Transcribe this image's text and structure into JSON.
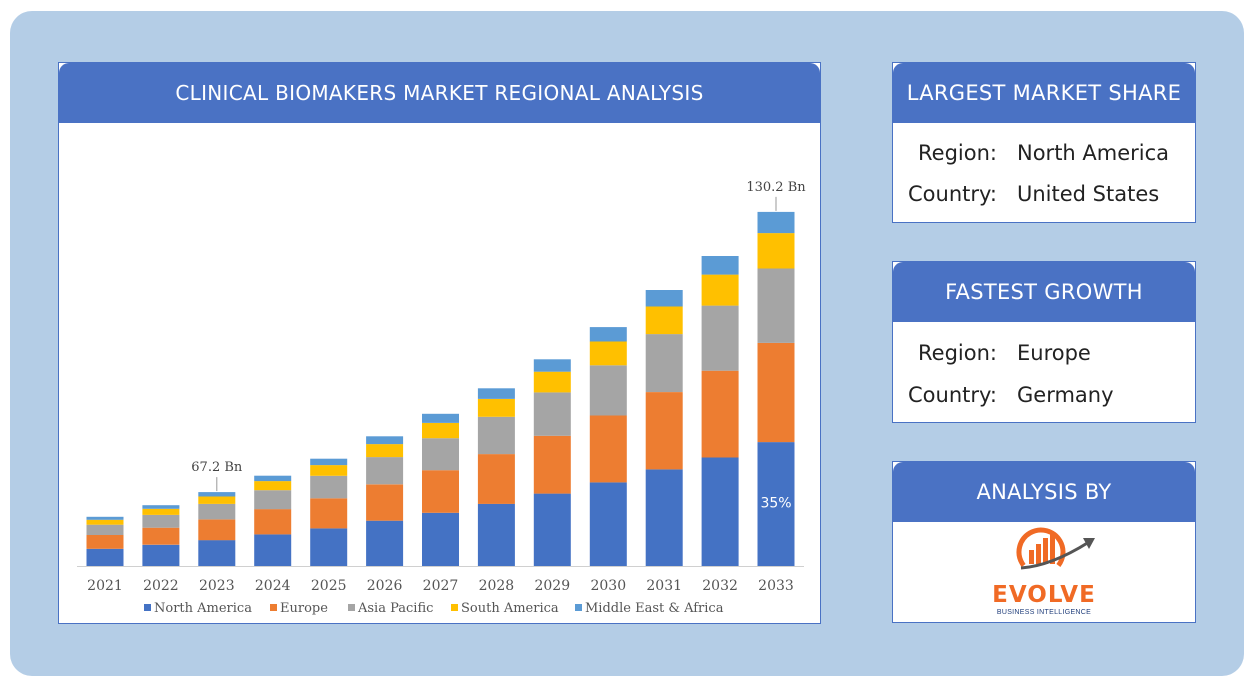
{
  "chart_card": {
    "title": "CLINICAL BIOMAKERS MARKET REGIONAL ANALYSIS"
  },
  "chart_data": {
    "type": "bar",
    "stacked": true,
    "title": "CLINICAL BIOMAKERS MARKET REGIONAL ANALYSIS",
    "xlabel": "",
    "ylabel": "",
    "categories": [
      "2021",
      "2022",
      "2023",
      "2024",
      "2025",
      "2026",
      "2027",
      "2028",
      "2029",
      "2030",
      "2031",
      "2032",
      "2033"
    ],
    "series": [
      {
        "name": "North America",
        "color": "#4472c4",
        "values": [
          17.5,
          21.6,
          26.3,
          32.1,
          38.2,
          46.1,
          54.1,
          63.2,
          73.6,
          85.0,
          98.2,
          110.3,
          126.0
        ]
      },
      {
        "name": "Europe",
        "color": "#ed7d31",
        "values": [
          14.0,
          17.3,
          21.0,
          25.7,
          30.6,
          36.9,
          43.3,
          50.6,
          58.8,
          68.0,
          78.6,
          88.2,
          100.8
        ]
      },
      {
        "name": "Asia Pacific",
        "color": "#a5a5a5",
        "values": [
          10.5,
          13.0,
          15.8,
          19.3,
          22.9,
          27.7,
          32.5,
          37.9,
          44.1,
          51.0,
          58.9,
          66.2,
          75.6
        ]
      },
      {
        "name": "South America",
        "color": "#ffc000",
        "values": [
          5.0,
          6.2,
          7.5,
          9.2,
          10.9,
          13.2,
          15.5,
          18.1,
          21.0,
          24.3,
          28.1,
          31.5,
          36.0
        ]
      },
      {
        "name": "Middle East & Africa",
        "color": "#5b9bd5",
        "values": [
          3.0,
          3.7,
          4.5,
          5.5,
          6.5,
          7.9,
          9.3,
          10.8,
          12.6,
          14.6,
          16.8,
          18.9,
          21.6
        ]
      }
    ],
    "annotations": [
      {
        "category": "2023",
        "label": "67.2 Bn"
      },
      {
        "category": "2033",
        "label": "130.2 Bn"
      },
      {
        "category": "2033",
        "series": "North America",
        "label": "35%"
      }
    ],
    "ylim": [
      0,
      430
    ],
    "grid": false,
    "legend": "bottom"
  },
  "largest_share": {
    "title": "LARGEST MARKET SHARE",
    "region_label": "Region:",
    "region_value": "North America",
    "country_label": "Country:",
    "country_value": "United States"
  },
  "fastest_growth": {
    "title": "FASTEST GROWTH",
    "region_label": "Region:",
    "region_value": "Europe",
    "country_label": "Country:",
    "country_value": "Germany"
  },
  "analysis_by": {
    "title": "ANALYSIS BY",
    "logo_text": "EVOLVE",
    "logo_subtext": "BUSINESS INTELLIGENCE"
  },
  "colors": {
    "frame": "#b4cde6",
    "header": "#4a72c4",
    "logo_orange": "#f06a25",
    "logo_navy": "#1f3d7a"
  }
}
